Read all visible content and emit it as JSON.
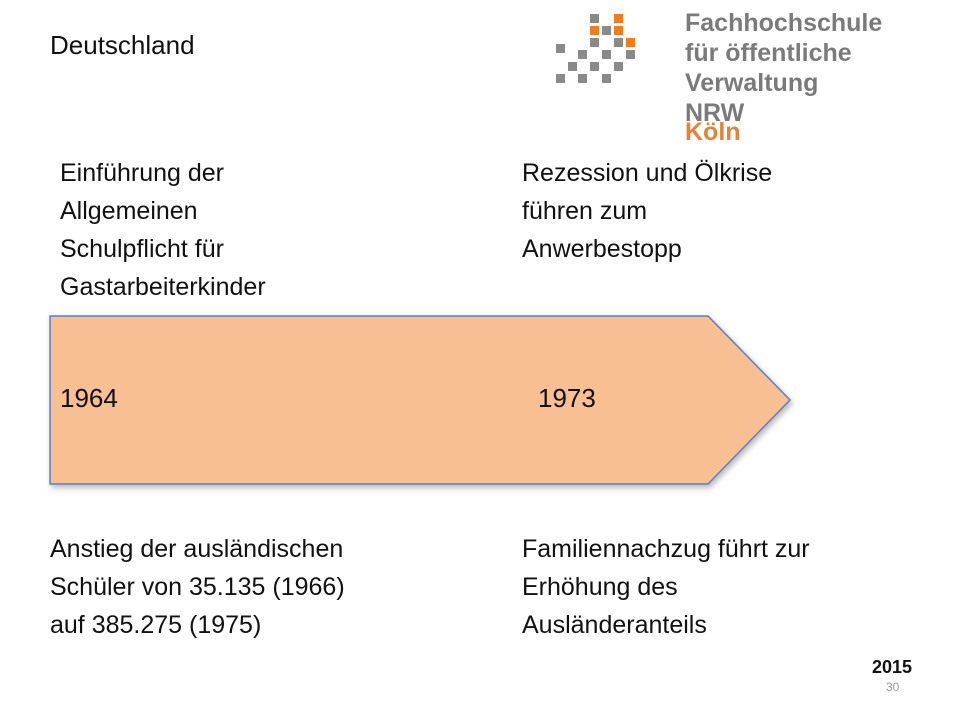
{
  "slide": {
    "heading": "Deutschland",
    "logo": {
      "line1": "Fachhochschule",
      "line2": "für öffentliche Verwaltung",
      "line3": "NRW",
      "city": "Köln"
    },
    "events_top": [
      {
        "text": "Einführung der\nAllgemeinen\nSchulpflicht für\nGastarbeiterkinder"
      },
      {
        "text": "Rezession und Ölkrise\nführen zum\nAnwerbestopp"
      }
    ],
    "timeline": {
      "years": [
        "1964",
        "1973"
      ],
      "fill_color": "#f8bf93",
      "stroke_color": "#5b7fc4"
    },
    "events_bottom": [
      {
        "text": "Anstieg der ausländischen\nSchüler von 35.135 (1966)\nauf 385.275 (1975)"
      },
      {
        "text": "Familiennachzug führt zur\nErhöhung des\nAusländeranteils"
      }
    ],
    "footer": {
      "year": "2015",
      "page_number": "30"
    }
  }
}
